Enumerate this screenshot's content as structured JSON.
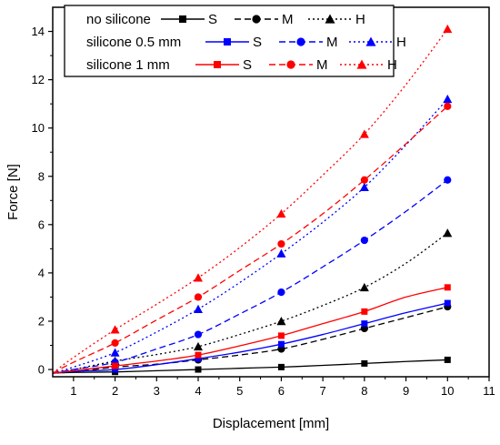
{
  "chart_data": {
    "type": "line",
    "title": "",
    "xlabel": "Displacement [mm]",
    "ylabel": "Force [N]",
    "xlim": [
      0.5,
      11
    ],
    "ylim": [
      -0.3,
      15
    ],
    "xticks": [
      1,
      2,
      3,
      4,
      5,
      6,
      7,
      8,
      9,
      10,
      11
    ],
    "yticks": [
      0,
      2,
      4,
      6,
      8,
      10,
      12,
      14
    ],
    "legend_position": "top-left",
    "legend_groups": [
      "no silicone",
      "silicone 0.5 mm",
      "silicone 1 mm"
    ],
    "legend_marker_labels": [
      "S",
      "M",
      "H"
    ],
    "series": [
      {
        "group": "no silicone",
        "label": "S",
        "color": "#000000",
        "dash": "solid",
        "marker": "square",
        "points": [
          [
            2,
            -0.1
          ],
          [
            4,
            0.0
          ],
          [
            6,
            0.1
          ],
          [
            8,
            0.25
          ],
          [
            10,
            0.4
          ]
        ],
        "curve": [
          [
            0.5,
            -0.15
          ],
          [
            1,
            -0.12
          ],
          [
            2,
            -0.1
          ],
          [
            3,
            -0.05
          ],
          [
            4,
            0.0
          ],
          [
            5,
            0.05
          ],
          [
            6,
            0.1
          ],
          [
            7,
            0.17
          ],
          [
            8,
            0.25
          ],
          [
            9,
            0.33
          ],
          [
            10,
            0.4
          ]
        ]
      },
      {
        "group": "no silicone",
        "label": "M",
        "color": "#000000",
        "dash": "dash",
        "marker": "circle",
        "points": [
          [
            2,
            0.1
          ],
          [
            4,
            0.4
          ],
          [
            6,
            0.85
          ],
          [
            8,
            1.7
          ],
          [
            10,
            2.6
          ]
        ],
        "curve": [
          [
            0.5,
            -0.15
          ],
          [
            1,
            -0.1
          ],
          [
            2,
            0.1
          ],
          [
            3,
            0.22
          ],
          [
            4,
            0.4
          ],
          [
            5,
            0.6
          ],
          [
            6,
            0.85
          ],
          [
            7,
            1.25
          ],
          [
            8,
            1.7
          ],
          [
            9,
            2.15
          ],
          [
            10,
            2.6
          ]
        ]
      },
      {
        "group": "no silicone",
        "label": "H",
        "color": "#000000",
        "dash": "dot",
        "marker": "triangle",
        "points": [
          [
            2,
            0.35
          ],
          [
            4,
            0.95
          ],
          [
            6,
            2.0
          ],
          [
            8,
            3.4
          ],
          [
            10,
            5.65
          ]
        ],
        "curve": [
          [
            0.5,
            -0.15
          ],
          [
            1,
            0.0
          ],
          [
            2,
            0.35
          ],
          [
            3,
            0.62
          ],
          [
            4,
            0.95
          ],
          [
            5,
            1.45
          ],
          [
            6,
            2.0
          ],
          [
            7,
            2.65
          ],
          [
            8,
            3.4
          ],
          [
            9,
            4.4
          ],
          [
            10,
            5.65
          ]
        ]
      },
      {
        "group": "silicone 0.5 mm",
        "label": "S",
        "color": "#0000ff",
        "dash": "solid",
        "marker": "square",
        "points": [
          [
            2,
            0.0
          ],
          [
            4,
            0.45
          ],
          [
            6,
            1.05
          ],
          [
            8,
            1.9
          ],
          [
            10,
            2.75
          ]
        ],
        "curve": [
          [
            0.5,
            -0.15
          ],
          [
            1,
            -0.08
          ],
          [
            2,
            0.0
          ],
          [
            3,
            0.2
          ],
          [
            4,
            0.45
          ],
          [
            5,
            0.72
          ],
          [
            6,
            1.05
          ],
          [
            7,
            1.45
          ],
          [
            8,
            1.9
          ],
          [
            9,
            2.35
          ],
          [
            10,
            2.75
          ]
        ]
      },
      {
        "group": "silicone 0.5 mm",
        "label": "M",
        "color": "#0000ff",
        "dash": "dash",
        "marker": "circle",
        "points": [
          [
            2,
            0.3
          ],
          [
            4,
            1.45
          ],
          [
            6,
            3.2
          ],
          [
            8,
            5.35
          ],
          [
            10,
            7.85
          ]
        ],
        "curve": [
          [
            0.5,
            -0.15
          ],
          [
            1,
            0.0
          ],
          [
            2,
            0.3
          ],
          [
            3,
            0.85
          ],
          [
            4,
            1.45
          ],
          [
            5,
            2.3
          ],
          [
            6,
            3.2
          ],
          [
            7,
            4.25
          ],
          [
            8,
            5.35
          ],
          [
            9,
            6.55
          ],
          [
            10,
            7.85
          ]
        ]
      },
      {
        "group": "silicone 0.5 mm",
        "label": "H",
        "color": "#0000ff",
        "dash": "dot",
        "marker": "triangle",
        "points": [
          [
            2,
            0.7
          ],
          [
            4,
            2.5
          ],
          [
            6,
            4.8
          ],
          [
            8,
            7.55
          ],
          [
            10,
            11.2
          ]
        ],
        "curve": [
          [
            0.5,
            -0.15
          ],
          [
            1,
            0.1
          ],
          [
            2,
            0.7
          ],
          [
            3,
            1.55
          ],
          [
            4,
            2.5
          ],
          [
            5,
            3.6
          ],
          [
            6,
            4.8
          ],
          [
            7,
            6.1
          ],
          [
            8,
            7.55
          ],
          [
            9,
            9.3
          ],
          [
            10,
            11.2
          ]
        ]
      },
      {
        "group": "silicone 1 mm",
        "label": "S",
        "color": "#ff0000",
        "dash": "solid",
        "marker": "square",
        "points": [
          [
            2,
            0.15
          ],
          [
            4,
            0.6
          ],
          [
            6,
            1.4
          ],
          [
            8,
            2.4
          ],
          [
            10,
            3.4
          ]
        ],
        "curve": [
          [
            0.5,
            -0.15
          ],
          [
            1,
            -0.05
          ],
          [
            2,
            0.15
          ],
          [
            3,
            0.35
          ],
          [
            4,
            0.6
          ],
          [
            5,
            0.98
          ],
          [
            6,
            1.4
          ],
          [
            7,
            1.9
          ],
          [
            8,
            2.4
          ],
          [
            9,
            3.0
          ],
          [
            10,
            3.4
          ]
        ]
      },
      {
        "group": "silicone 1 mm",
        "label": "M",
        "color": "#ff0000",
        "dash": "dash",
        "marker": "circle",
        "points": [
          [
            2,
            1.1
          ],
          [
            4,
            3.0
          ],
          [
            6,
            5.2
          ],
          [
            8,
            7.85
          ],
          [
            10,
            10.9
          ]
        ],
        "curve": [
          [
            0.5,
            -0.15
          ],
          [
            1,
            0.3
          ],
          [
            2,
            1.1
          ],
          [
            3,
            2.05
          ],
          [
            4,
            3.0
          ],
          [
            5,
            4.1
          ],
          [
            6,
            5.2
          ],
          [
            7,
            6.45
          ],
          [
            8,
            7.85
          ],
          [
            9,
            9.35
          ],
          [
            10,
            10.9
          ]
        ]
      },
      {
        "group": "silicone 1 mm",
        "label": "H",
        "color": "#ff0000",
        "dash": "dot",
        "marker": "triangle",
        "points": [
          [
            2,
            1.65
          ],
          [
            4,
            3.8
          ],
          [
            6,
            6.45
          ],
          [
            8,
            9.75
          ],
          [
            10,
            14.1
          ]
        ],
        "curve": [
          [
            0.5,
            -0.15
          ],
          [
            1,
            0.5
          ],
          [
            2,
            1.65
          ],
          [
            3,
            2.7
          ],
          [
            4,
            3.8
          ],
          [
            5,
            5.05
          ],
          [
            6,
            6.45
          ],
          [
            7,
            8.05
          ],
          [
            8,
            9.75
          ],
          [
            9,
            11.8
          ],
          [
            10,
            14.1
          ]
        ]
      }
    ]
  }
}
